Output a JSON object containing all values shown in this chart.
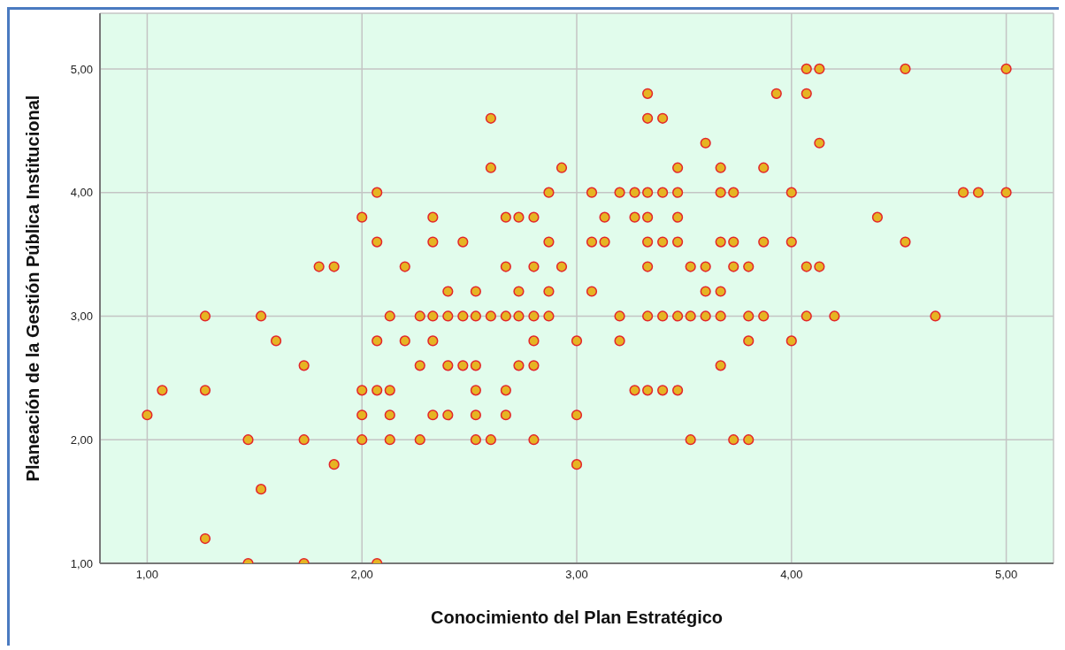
{
  "chart_data": {
    "type": "scatter",
    "xlabel": "Conocimiento del Plan Estratégico",
    "ylabel": "Planeación de la Gestión Pública Institucional",
    "x": [
      4.07,
      4.13,
      4.53,
      5.0,
      3.33,
      3.93,
      4.07,
      2.6,
      3.33,
      3.4,
      3.6,
      4.13,
      2.6,
      2.93,
      3.47,
      3.67,
      3.87,
      2.07,
      2.87,
      3.07,
      3.2,
      3.27,
      3.33,
      3.4,
      3.47,
      3.67,
      3.73,
      4.0,
      4.8,
      4.87,
      5.0,
      2.0,
      2.33,
      2.67,
      2.73,
      2.8,
      3.13,
      3.27,
      3.33,
      3.47,
      4.4,
      2.07,
      2.33,
      2.47,
      2.87,
      3.07,
      3.13,
      3.33,
      3.4,
      3.47,
      3.67,
      3.73,
      3.87,
      4.0,
      4.53,
      1.8,
      1.87,
      2.2,
      2.67,
      2.8,
      2.93,
      3.33,
      3.53,
      3.6,
      3.73,
      3.8,
      4.07,
      4.13,
      2.4,
      2.53,
      2.73,
      2.87,
      3.07,
      3.6,
      3.67,
      1.27,
      1.53,
      2.13,
      2.27,
      2.33,
      2.4,
      2.47,
      2.53,
      2.6,
      2.67,
      2.73,
      2.8,
      2.87,
      3.2,
      3.33,
      3.4,
      3.47,
      3.53,
      3.6,
      3.67,
      3.8,
      3.87,
      4.07,
      4.2,
      4.67,
      1.6,
      2.07,
      2.2,
      2.33,
      2.8,
      3.0,
      3.2,
      3.8,
      4.0,
      1.73,
      2.27,
      2.4,
      2.47,
      2.53,
      2.73,
      2.8,
      3.67,
      1.07,
      1.27,
      2.0,
      2.07,
      2.13,
      2.53,
      2.67,
      3.27,
      3.33,
      3.4,
      3.47,
      1.0,
      2.0,
      2.13,
      2.33,
      2.4,
      2.53,
      2.67,
      3.0,
      1.47,
      1.73,
      2.0,
      2.13,
      2.27,
      2.53,
      2.6,
      2.8,
      3.53,
      3.73,
      3.8,
      1.87,
      3.0,
      1.53,
      1.27,
      1.47,
      1.73,
      2.07
    ],
    "values": [
      5.0,
      5.0,
      5.0,
      5.0,
      4.8,
      4.8,
      4.8,
      4.6,
      4.6,
      4.6,
      4.4,
      4.4,
      4.2,
      4.2,
      4.2,
      4.2,
      4.2,
      4.0,
      4.0,
      4.0,
      4.0,
      4.0,
      4.0,
      4.0,
      4.0,
      4.0,
      4.0,
      4.0,
      4.0,
      4.0,
      4.0,
      3.8,
      3.8,
      3.8,
      3.8,
      3.8,
      3.8,
      3.8,
      3.8,
      3.8,
      3.8,
      3.6,
      3.6,
      3.6,
      3.6,
      3.6,
      3.6,
      3.6,
      3.6,
      3.6,
      3.6,
      3.6,
      3.6,
      3.6,
      3.6,
      3.4,
      3.4,
      3.4,
      3.4,
      3.4,
      3.4,
      3.4,
      3.4,
      3.4,
      3.4,
      3.4,
      3.4,
      3.4,
      3.2,
      3.2,
      3.2,
      3.2,
      3.2,
      3.2,
      3.2,
      3.0,
      3.0,
      3.0,
      3.0,
      3.0,
      3.0,
      3.0,
      3.0,
      3.0,
      3.0,
      3.0,
      3.0,
      3.0,
      3.0,
      3.0,
      3.0,
      3.0,
      3.0,
      3.0,
      3.0,
      3.0,
      3.0,
      3.0,
      3.0,
      3.0,
      2.8,
      2.8,
      2.8,
      2.8,
      2.8,
      2.8,
      2.8,
      2.8,
      2.8,
      2.6,
      2.6,
      2.6,
      2.6,
      2.6,
      2.6,
      2.6,
      2.6,
      2.4,
      2.4,
      2.4,
      2.4,
      2.4,
      2.4,
      2.4,
      2.4,
      2.4,
      2.4,
      2.4,
      2.2,
      2.2,
      2.2,
      2.2,
      2.2,
      2.2,
      2.2,
      2.2,
      2.0,
      2.0,
      2.0,
      2.0,
      2.0,
      2.0,
      2.0,
      2.0,
      2.0,
      2.0,
      2.0,
      1.8,
      1.8,
      1.6,
      1.2,
      1.0,
      1.0,
      1.0
    ],
    "color": "#e6b422",
    "marker": "circle",
    "grid": true,
    "xlim": [
      0.78,
      5.22
    ],
    "xticks": [
      {
        "value": 1,
        "label": "1,00"
      },
      {
        "value": 2,
        "label": "2,00"
      },
      {
        "value": 3,
        "label": "3,00"
      },
      {
        "value": 4,
        "label": "4,00"
      },
      {
        "value": 5,
        "label": "5,00"
      }
    ],
    "ylim": [
      1,
      5.45
    ],
    "yticks": [
      {
        "value": 1,
        "label": "1,00"
      },
      {
        "value": 2,
        "label": "2,00"
      },
      {
        "value": 3,
        "label": "3,00"
      },
      {
        "value": 4,
        "label": "4,00"
      },
      {
        "value": 5,
        "label": "5,00"
      }
    ]
  }
}
